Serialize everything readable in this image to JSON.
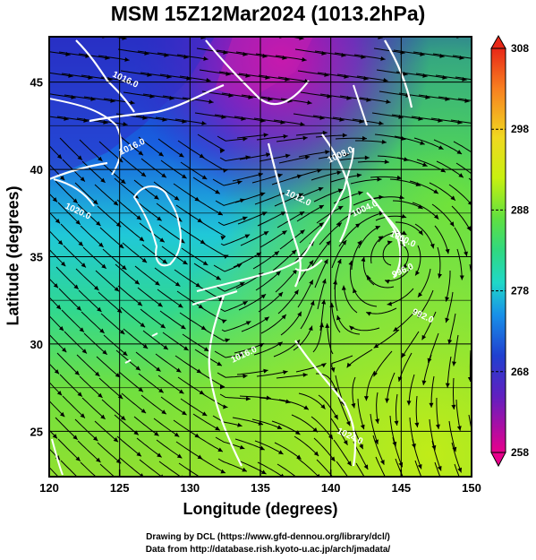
{
  "title": "MSM 15Z12Mar2024 (1013.2hPa)",
  "map": {
    "xlabel": "Longitude (degrees)",
    "ylabel": "Latitude  (degrees)",
    "lon_range": [
      120,
      150
    ],
    "lat_range": [
      22.4,
      47.6
    ],
    "xticks": [
      "120",
      "125",
      "130",
      "135",
      "140",
      "145",
      "150"
    ],
    "yticks": [
      "25",
      "30",
      "35",
      "40",
      "45"
    ],
    "field": "temperature (K) with streamlines and isobars",
    "isobar_labels": [
      "1016.0",
      "1016.0",
      "1020.0",
      "1008.0",
      "1012.0",
      "1004.0",
      "1000.0",
      "996.0",
      "992.0",
      "1016.0",
      "1024.0"
    ]
  },
  "colorbar": {
    "ticks": [
      "308",
      "298",
      "288",
      "278",
      "268",
      "258"
    ],
    "range": [
      258,
      308
    ],
    "colors": [
      "#e8008c",
      "#a000c8",
      "#3040d8",
      "#1070f0",
      "#20c0e0",
      "#20d8b0",
      "#30d060",
      "#80e030",
      "#d0f010",
      "#f0e020",
      "#f8a020",
      "#f04020"
    ]
  },
  "credits": {
    "line1": "Drawing by DCL (https://www.gfd-dennou.org/library/dcl/)",
    "line2": "Data from http://database.rish.kyoto-u.ac.jp/arch/jmadata/"
  }
}
